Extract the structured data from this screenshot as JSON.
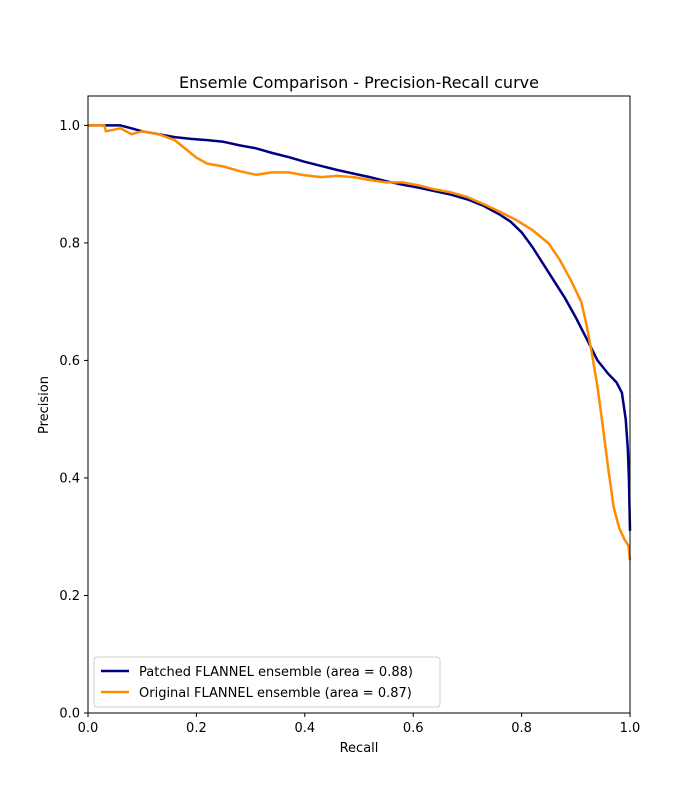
{
  "chart_data": {
    "type": "line",
    "title": "Ensemle Comparison - Precision-Recall curve",
    "xlabel": "Recall",
    "ylabel": "Precision",
    "xlim": [
      0.0,
      1.0
    ],
    "ylim": [
      0.0,
      1.05
    ],
    "x_ticks": [
      0.0,
      0.2,
      0.4,
      0.6,
      0.8,
      1.0
    ],
    "x_tick_labels": [
      "0.0",
      "0.2",
      "0.4",
      "0.6",
      "0.8",
      "1.0"
    ],
    "y_ticks": [
      0.0,
      0.2,
      0.4,
      0.6,
      0.8,
      1.0
    ],
    "y_tick_labels": [
      "0.0",
      "0.2",
      "0.4",
      "0.6",
      "0.8",
      "1.0"
    ],
    "grid": false,
    "legend_position": "lower-left",
    "series": [
      {
        "name": "Patched FLANNEL ensemble (area = 0.88)",
        "color": "#000080",
        "points": [
          [
            0.0,
            1.0
          ],
          [
            0.03,
            1.0
          ],
          [
            0.06,
            1.0
          ],
          [
            0.08,
            0.995
          ],
          [
            0.1,
            0.99
          ],
          [
            0.13,
            0.985
          ],
          [
            0.16,
            0.98
          ],
          [
            0.19,
            0.977
          ],
          [
            0.22,
            0.975
          ],
          [
            0.25,
            0.972
          ],
          [
            0.28,
            0.966
          ],
          [
            0.31,
            0.961
          ],
          [
            0.34,
            0.953
          ],
          [
            0.37,
            0.946
          ],
          [
            0.4,
            0.938
          ],
          [
            0.43,
            0.931
          ],
          [
            0.46,
            0.924
          ],
          [
            0.49,
            0.918
          ],
          [
            0.52,
            0.912
          ],
          [
            0.55,
            0.905
          ],
          [
            0.58,
            0.899
          ],
          [
            0.61,
            0.894
          ],
          [
            0.64,
            0.888
          ],
          [
            0.67,
            0.882
          ],
          [
            0.7,
            0.874
          ],
          [
            0.73,
            0.863
          ],
          [
            0.76,
            0.848
          ],
          [
            0.78,
            0.836
          ],
          [
            0.8,
            0.818
          ],
          [
            0.82,
            0.793
          ],
          [
            0.84,
            0.764
          ],
          [
            0.86,
            0.735
          ],
          [
            0.88,
            0.706
          ],
          [
            0.9,
            0.673
          ],
          [
            0.92,
            0.637
          ],
          [
            0.94,
            0.6
          ],
          [
            0.96,
            0.577
          ],
          [
            0.975,
            0.563
          ],
          [
            0.985,
            0.545
          ],
          [
            0.992,
            0.5
          ],
          [
            0.996,
            0.45
          ],
          [
            0.998,
            0.4
          ],
          [
            0.999,
            0.35
          ],
          [
            1.0,
            0.31
          ]
        ]
      },
      {
        "name": "Original FLANNEL ensemble (area = 0.87)",
        "color": "#ff8c00",
        "points": [
          [
            0.0,
            1.0
          ],
          [
            0.03,
            1.0
          ],
          [
            0.033,
            0.99
          ],
          [
            0.06,
            0.995
          ],
          [
            0.08,
            0.985
          ],
          [
            0.1,
            0.99
          ],
          [
            0.13,
            0.985
          ],
          [
            0.16,
            0.975
          ],
          [
            0.18,
            0.96
          ],
          [
            0.2,
            0.945
          ],
          [
            0.22,
            0.935
          ],
          [
            0.25,
            0.93
          ],
          [
            0.28,
            0.922
          ],
          [
            0.31,
            0.916
          ],
          [
            0.34,
            0.92
          ],
          [
            0.37,
            0.92
          ],
          [
            0.4,
            0.915
          ],
          [
            0.43,
            0.912
          ],
          [
            0.46,
            0.914
          ],
          [
            0.49,
            0.912
          ],
          [
            0.52,
            0.907
          ],
          [
            0.55,
            0.903
          ],
          [
            0.58,
            0.903
          ],
          [
            0.61,
            0.898
          ],
          [
            0.64,
            0.891
          ],
          [
            0.67,
            0.886
          ],
          [
            0.7,
            0.878
          ],
          [
            0.73,
            0.866
          ],
          [
            0.76,
            0.853
          ],
          [
            0.79,
            0.839
          ],
          [
            0.82,
            0.822
          ],
          [
            0.85,
            0.799
          ],
          [
            0.87,
            0.772
          ],
          [
            0.89,
            0.738
          ],
          [
            0.91,
            0.7
          ],
          [
            0.92,
            0.66
          ],
          [
            0.93,
            0.61
          ],
          [
            0.94,
            0.555
          ],
          [
            0.95,
            0.487
          ],
          [
            0.96,
            0.415
          ],
          [
            0.97,
            0.35
          ],
          [
            0.98,
            0.315
          ],
          [
            0.99,
            0.295
          ],
          [
            0.997,
            0.285
          ],
          [
            1.0,
            0.26
          ]
        ]
      }
    ]
  }
}
